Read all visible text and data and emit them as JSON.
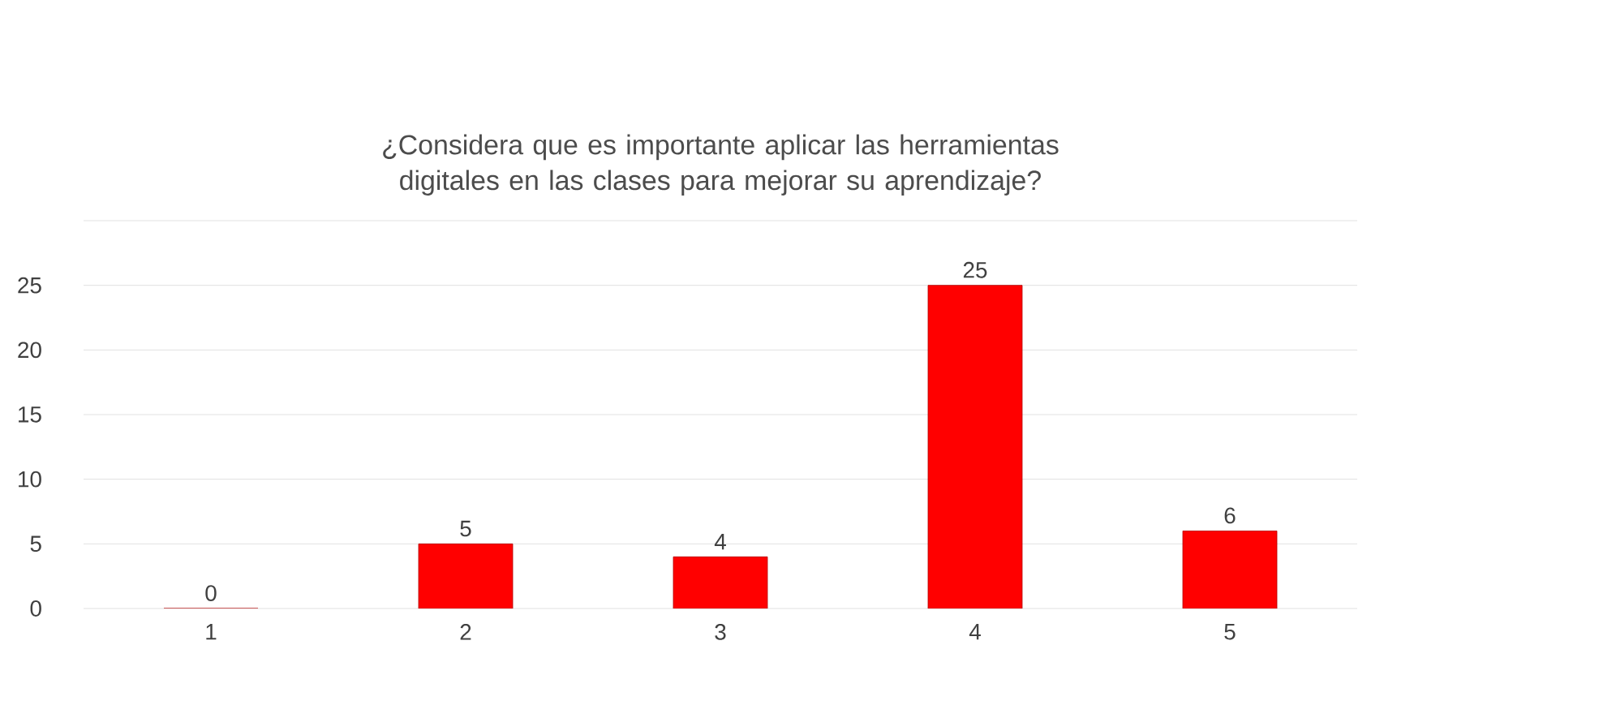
{
  "chart_data": {
    "type": "bar",
    "title": "¿Considera que es importante aplicar las herramientas digitales en las clases para mejorar su aprendizaje?",
    "categories": [
      "1",
      "2",
      "3",
      "4",
      "5"
    ],
    "values": [
      0,
      5,
      4,
      25,
      6
    ],
    "color": "#ff0000",
    "ylim": [
      0,
      30
    ],
    "yticks": [
      0,
      5,
      10,
      15,
      20,
      25,
      {
        "value": 30,
        "label": null
      }
    ],
    "grid": "y",
    "data_labels": true
  }
}
